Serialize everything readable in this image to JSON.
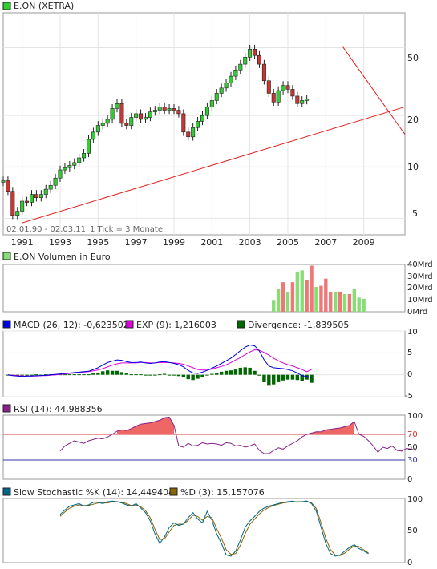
{
  "colors": {
    "up": "#33cc33",
    "down": "#cc3333",
    "trend": "#e02020",
    "frame": "#9a9a9a",
    "volume_up": "#88dd77",
    "volume_down": "#ee7777",
    "macd": "#0000dd",
    "exp": "#dd00dd",
    "divergence": "#006600",
    "rsi": "#882288",
    "stoch_k": "#006688",
    "stoch_d": "#886600"
  },
  "price": {
    "title": "E.ON (XETRA)",
    "range_label": "02.01.90 - 02.03.11",
    "tick_label": "1 Tick = 3 Monate",
    "y_ticks": [
      "50",
      "20",
      "10",
      "5"
    ],
    "x_ticks": [
      "1991",
      "1993",
      "1995",
      "1997",
      "1999",
      "2001",
      "2003",
      "2005",
      "2007",
      "2009"
    ]
  },
  "volume": {
    "title": "E.ON Volumen in Euro",
    "y_ticks": [
      "40Mrd",
      "30Mrd",
      "20Mrd",
      "10Mrd",
      "0Mrd"
    ]
  },
  "macd": {
    "macd_label": "MACD (26, 12): -0,623502",
    "exp_label": "EXP (9): 1,216003",
    "div_label": "Divergence: -1,839505",
    "y_ticks": [
      "10",
      "5",
      "0",
      "-5"
    ]
  },
  "rsi": {
    "label": "RSI (14): 44,988356",
    "y_ticks": [
      "100",
      "70",
      "50",
      "30",
      "0"
    ]
  },
  "stoch": {
    "k_label": "Slow Stochastic %K (14): 14,449404",
    "d_label": "%D (3): 15,157076",
    "y_ticks": [
      "100",
      "50",
      "0"
    ]
  },
  "chart_data": [
    {
      "type": "candlestick",
      "title": "E.ON (XETRA)",
      "x_range": [
        1990.0,
        2011.17
      ],
      "y_scale": "log",
      "y_range": [
        4,
        80
      ],
      "y_ticks": [
        5,
        10,
        20,
        50
      ],
      "x_ticks": [
        1991,
        1993,
        1995,
        1997,
        1999,
        2001,
        2003,
        2005,
        2007,
        2009
      ],
      "closes_quarterly": [
        8.3,
        7.2,
        5.2,
        5.5,
        6.3,
        6.2,
        6.9,
        6.6,
        6.9,
        7.4,
        7.8,
        8.6,
        9.6,
        9.9,
        10.2,
        10.6,
        11.3,
        12.0,
        14.5,
        16.0,
        17.5,
        18.0,
        19.0,
        22.0,
        23.5,
        18.0,
        17.5,
        19.5,
        20.5,
        19.0,
        19.5,
        21.0,
        21.5,
        22.5,
        21.5,
        22.0,
        21.5,
        20.5,
        16.0,
        15.0,
        17.0,
        18.5,
        20.0,
        22.5,
        24.5,
        27.0,
        29.0,
        31.0,
        34.0,
        37.0,
        40.0,
        44.0,
        49.0,
        45.0,
        40.0,
        32.0,
        27.0,
        24.0,
        28.0,
        30.0,
        28.5,
        26.0,
        23.5,
        24.5,
        25.0
      ],
      "trend_lines": [
        {
          "from": [
            1991.0,
            4.7
          ],
          "to": [
            2011.17,
            22.5
          ]
        },
        {
          "from": [
            2007.9,
            50.5
          ],
          "to": [
            2011.17,
            15.5
          ]
        }
      ]
    },
    {
      "type": "bar",
      "title": "E.ON Volumen in Euro",
      "unit": "Mrd",
      "y_range": [
        0,
        40
      ],
      "x_start": 2004.25,
      "values": [
        10,
        19,
        25,
        17,
        25,
        34,
        35,
        27,
        39,
        21,
        22,
        28,
        17,
        17,
        17,
        15,
        15,
        19,
        12,
        11
      ],
      "up": [
        true,
        true,
        false,
        true,
        false,
        true,
        true,
        false,
        false,
        true,
        false,
        false,
        false,
        true,
        false,
        true,
        false,
        true,
        true,
        true
      ]
    },
    {
      "type": "line",
      "title": "MACD (26, 12)",
      "y_range": [
        -5,
        10
      ],
      "x_start": 1990.25,
      "series": [
        {
          "name": "MACD (26, 12)",
          "values": [
            0.0,
            -0.2,
            -0.3,
            -0.4,
            -0.3,
            -0.3,
            -0.2,
            -0.2,
            -0.1,
            0.0,
            0.1,
            0.2,
            0.3,
            0.4,
            0.5,
            0.6,
            0.7,
            0.8,
            1.2,
            1.6,
            2.2,
            2.8,
            3.1,
            3.4,
            3.3,
            3.0,
            2.8,
            2.8,
            2.9,
            2.7,
            2.6,
            2.7,
            2.9,
            3.0,
            2.8,
            2.6,
            2.3,
            1.8,
            1.0,
            0.4,
            0.3,
            0.6,
            1.0,
            1.5,
            2.0,
            2.6,
            3.2,
            3.8,
            4.6,
            5.5,
            6.3,
            6.8,
            6.6,
            5.4,
            3.4,
            2.0,
            1.6,
            1.5,
            1.4,
            1.2,
            0.9,
            0.4,
            -0.2,
            -0.4,
            -0.62
          ]
        },
        {
          "name": "EXP (9)",
          "values": [
            0.0,
            -0.1,
            -0.2,
            -0.3,
            -0.3,
            -0.3,
            -0.3,
            -0.2,
            -0.2,
            -0.1,
            0.0,
            0.1,
            0.2,
            0.3,
            0.4,
            0.5,
            0.6,
            0.7,
            0.9,
            1.1,
            1.4,
            1.8,
            2.2,
            2.5,
            2.7,
            2.7,
            2.7,
            2.7,
            2.8,
            2.8,
            2.7,
            2.7,
            2.8,
            2.8,
            2.8,
            2.7,
            2.6,
            2.4,
            2.0,
            1.6,
            1.2,
            1.1,
            1.1,
            1.3,
            1.6,
            1.9,
            2.3,
            2.8,
            3.4,
            3.9,
            4.6,
            5.2,
            5.7,
            5.6,
            5.1,
            4.5,
            3.8,
            3.2,
            2.7,
            2.3,
            2.0,
            1.6,
            1.2,
            0.7,
            1.2
          ]
        },
        {
          "name": "Divergence",
          "values": [
            0.0,
            -0.1,
            -0.1,
            -0.1,
            0.0,
            0.0,
            0.1,
            0.0,
            0.1,
            0.1,
            0.1,
            0.1,
            0.1,
            0.1,
            0.1,
            0.1,
            0.1,
            0.1,
            0.3,
            0.5,
            0.8,
            1.0,
            0.9,
            0.9,
            0.6,
            0.3,
            0.1,
            0.1,
            0.1,
            -0.1,
            -0.1,
            0.0,
            0.1,
            0.2,
            0.0,
            -0.1,
            -0.3,
            -0.6,
            -1.0,
            -1.2,
            -0.9,
            -0.5,
            -0.1,
            0.2,
            0.4,
            0.7,
            0.9,
            1.0,
            1.2,
            1.6,
            1.7,
            1.6,
            0.9,
            -0.2,
            -1.7,
            -2.5,
            -2.2,
            -1.7,
            -1.3,
            -1.1,
            -1.1,
            -1.2,
            -1.4,
            -1.1,
            -1.84
          ]
        }
      ]
    },
    {
      "type": "line",
      "title": "RSI (14)",
      "y_range": [
        0,
        100
      ],
      "levels": [
        70,
        30
      ],
      "x_start": 1993.0,
      "series": [
        {
          "name": "RSI (14)",
          "values": [
            44,
            52,
            56,
            60,
            58,
            56,
            60,
            62,
            64,
            63,
            66,
            70,
            75,
            77,
            76,
            79,
            83,
            86,
            87,
            88,
            90,
            92,
            96,
            97,
            84,
            52,
            50,
            56,
            52,
            53,
            57,
            55,
            56,
            55,
            53,
            57,
            56,
            52,
            53,
            50,
            52,
            55,
            45,
            40,
            40,
            45,
            49,
            47,
            52,
            56,
            60,
            66,
            70,
            72,
            74,
            74,
            77,
            78,
            79,
            80,
            82,
            84,
            90,
            70,
            67,
            60,
            52,
            42,
            50,
            48,
            52,
            45,
            44,
            48,
            47,
            45
          ]
        }
      ]
    },
    {
      "type": "line",
      "title": "Slow Stochastic",
      "y_range": [
        0,
        100
      ],
      "x_start": 1993.0,
      "series": [
        {
          "name": "Slow Stochastic %K (14)",
          "values": [
            75,
            82,
            88,
            90,
            92,
            88,
            90,
            94,
            94,
            92,
            95,
            96,
            95,
            93,
            90,
            88,
            92,
            85,
            78,
            65,
            45,
            30,
            40,
            55,
            62,
            58,
            60,
            70,
            78,
            68,
            62,
            80,
            66,
            45,
            30,
            12,
            10,
            18,
            35,
            55,
            65,
            72,
            80,
            85,
            88,
            90,
            92,
            94,
            95,
            96,
            94,
            95,
            96,
            92,
            80,
            55,
            30,
            14,
            10,
            12,
            18,
            24,
            28,
            22,
            18,
            14
          ]
        },
        {
          "name": "%D (3)",
          "values": [
            72,
            79,
            85,
            88,
            90,
            89,
            89,
            91,
            93,
            93,
            93,
            95,
            95,
            94,
            92,
            89,
            90,
            87,
            81,
            70,
            52,
            36,
            37,
            48,
            58,
            60,
            60,
            66,
            74,
            72,
            66,
            72,
            70,
            53,
            38,
            20,
            13,
            14,
            27,
            45,
            60,
            68,
            76,
            82,
            86,
            89,
            91,
            93,
            94,
            95,
            95,
            95,
            95,
            93,
            84,
            62,
            38,
            20,
            12,
            11,
            15,
            21,
            26,
            25,
            20,
            15
          ]
        }
      ]
    }
  ]
}
